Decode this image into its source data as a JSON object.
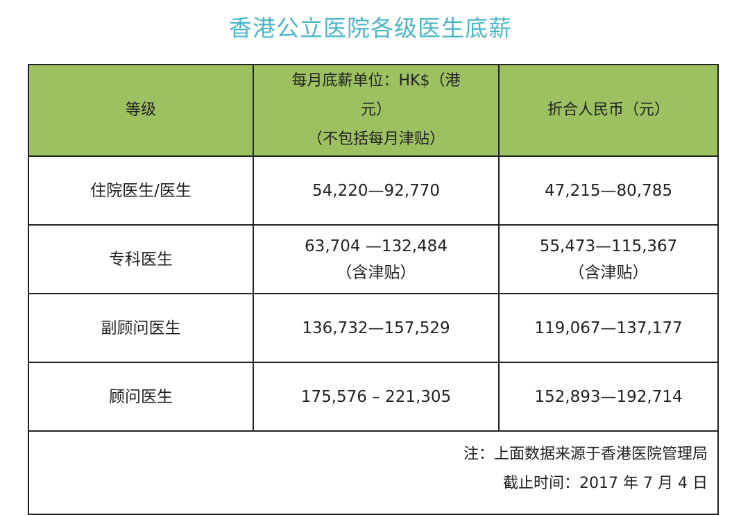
{
  "title": "香港公立医院各级医生底薪",
  "table": {
    "headers": {
      "grade": "等级",
      "monthly_hkd": [
        "每月底薪单位：HK$（港",
        "元）",
        "（不包括每月津贴）"
      ],
      "rmb": "折合人民币（元）"
    },
    "rows": [
      {
        "grade": "住院医生/医生",
        "hkd": [
          "54,220—92,770"
        ],
        "rmb": [
          "47,215—80,785"
        ]
      },
      {
        "grade": "专科医生",
        "hkd": [
          "63,704 —132,484",
          "（含津贴）"
        ],
        "rmb": [
          "55,473—115,367",
          "（含津贴）"
        ]
      },
      {
        "grade": "副顾问医生",
        "hkd": [
          "136,732—157,529"
        ],
        "rmb": [
          "119,067—137,177"
        ]
      },
      {
        "grade": "顾问医生",
        "hkd": [
          "175,576 – 221,305"
        ],
        "rmb": [
          "152,893—192,714"
        ]
      }
    ],
    "note": {
      "source": "注：上面数据来源于香港医院管理局",
      "cutoff": "截止时间：2017 年 7 月 4 日"
    }
  },
  "colors": {
    "title": "#4ab8c8",
    "header_bg": "#9dc161",
    "border": "#222222"
  }
}
